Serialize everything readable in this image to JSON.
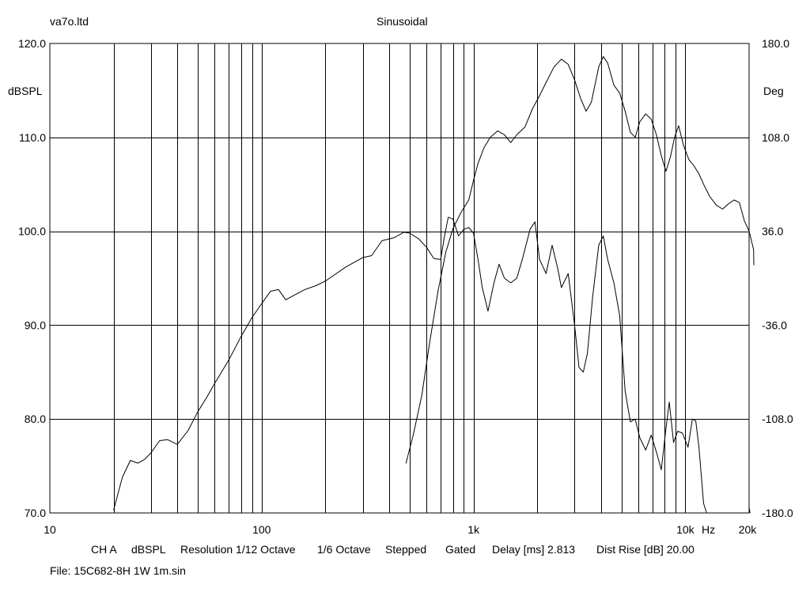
{
  "header": {
    "company": "va7o.ltd",
    "mode": "Sinusoidal"
  },
  "footer": {
    "channel": "CH A",
    "unit": "dBSPL",
    "resolution": "Resolution 1/12 Octave",
    "smoothing": "1/6 Octave",
    "stepped": "Stepped",
    "gated": "Gated",
    "delay": "Delay [ms] 2.813",
    "dist_rise": "Dist Rise [dB] 20.00",
    "file": "File: 15C682-8H 1W 1m.sin"
  },
  "chart_data": {
    "type": "line",
    "x_scale": "log",
    "xlim": [
      10,
      20000
    ],
    "ylim": [
      70,
      120
    ],
    "y2lim": [
      -180,
      180
    ],
    "grid": true,
    "ylabel": "dBSPL",
    "y2label": "Deg",
    "xunit": "Hz",
    "x_ticks": [
      {
        "value": 10,
        "label": "10"
      },
      {
        "value": 100,
        "label": "100"
      },
      {
        "value": 1000,
        "label": "1k"
      },
      {
        "value": 10000,
        "label": "10k"
      },
      {
        "value": 20000,
        "label": "20k"
      }
    ],
    "y_ticks": [
      {
        "value": 120,
        "label": "120.0"
      },
      {
        "value": 110,
        "label": "110.0"
      },
      {
        "value": 100,
        "label": "100.0"
      },
      {
        "value": 90,
        "label": "90.0"
      },
      {
        "value": 80,
        "label": "80.0"
      },
      {
        "value": 70,
        "label": "70.0"
      }
    ],
    "y2_ticks": [
      {
        "value": 180,
        "label": "180.0"
      },
      {
        "value": 108,
        "label": "108.0"
      },
      {
        "value": 36,
        "label": "36.0"
      },
      {
        "value": -36,
        "label": "-36.0"
      },
      {
        "value": -108,
        "label": "-108.0"
      },
      {
        "value": -180,
        "label": "-180.0"
      }
    ],
    "series": [
      {
        "axis": "left",
        "points": [
          [
            20,
            70.3
          ],
          [
            22,
            73.8
          ],
          [
            24,
            75.6
          ],
          [
            26,
            75.3
          ],
          [
            28,
            75.7
          ],
          [
            30,
            76.4
          ],
          [
            33,
            77.7
          ],
          [
            36,
            77.8
          ],
          [
            40,
            77.3
          ],
          [
            45,
            78.8
          ],
          [
            50,
            80.8
          ],
          [
            55,
            82.3
          ],
          [
            60,
            83.8
          ],
          [
            70,
            86.3
          ],
          [
            80,
            88.8
          ],
          [
            90,
            90.8
          ],
          [
            100,
            92.3
          ],
          [
            110,
            93.6
          ],
          [
            120,
            93.8
          ],
          [
            130,
            92.7
          ],
          [
            140,
            93.1
          ],
          [
            160,
            93.8
          ],
          [
            180,
            94.2
          ],
          [
            200,
            94.7
          ],
          [
            250,
            96.2
          ],
          [
            300,
            97.2
          ],
          [
            330,
            97.4
          ],
          [
            370,
            99.0
          ],
          [
            420,
            99.3
          ],
          [
            470,
            99.9
          ],
          [
            500,
            99.8
          ],
          [
            550,
            99.2
          ],
          [
            600,
            98.3
          ],
          [
            650,
            97.1
          ],
          [
            700,
            97.0
          ],
          [
            730,
            99.5
          ],
          [
            760,
            101.5
          ],
          [
            800,
            101.3
          ],
          [
            850,
            99.5
          ],
          [
            900,
            100.2
          ],
          [
            950,
            100.4
          ],
          [
            1000,
            99.8
          ],
          [
            1050,
            97.0
          ],
          [
            1100,
            94.0
          ],
          [
            1170,
            91.5
          ],
          [
            1250,
            94.5
          ],
          [
            1320,
            96.5
          ],
          [
            1400,
            95.0
          ],
          [
            1500,
            94.5
          ],
          [
            1600,
            95.0
          ],
          [
            1700,
            97.0
          ],
          [
            1850,
            100.2
          ],
          [
            1950,
            101.0
          ],
          [
            2050,
            97.0
          ],
          [
            2200,
            95.5
          ],
          [
            2350,
            98.5
          ],
          [
            2500,
            96.0
          ],
          [
            2600,
            94.0
          ],
          [
            2800,
            95.5
          ],
          [
            3000,
            90.0
          ],
          [
            3150,
            85.5
          ],
          [
            3300,
            85.0
          ],
          [
            3450,
            87.0
          ],
          [
            3650,
            93.0
          ],
          [
            3900,
            98.5
          ],
          [
            4100,
            99.5
          ],
          [
            4300,
            97.0
          ],
          [
            4600,
            94.5
          ],
          [
            4900,
            91.0
          ],
          [
            5200,
            83.0
          ],
          [
            5500,
            79.7
          ],
          [
            5800,
            80.0
          ],
          [
            6100,
            78.0
          ],
          [
            6500,
            76.7
          ],
          [
            6900,
            78.3
          ],
          [
            7300,
            76.5
          ],
          [
            7700,
            74.6
          ],
          [
            8100,
            79.0
          ],
          [
            8400,
            81.8
          ],
          [
            8800,
            77.5
          ],
          [
            9200,
            78.7
          ],
          [
            9700,
            78.5
          ],
          [
            10300,
            77.0
          ],
          [
            10800,
            80.0
          ],
          [
            11200,
            79.8
          ],
          [
            11600,
            77.0
          ],
          [
            12200,
            71.0
          ],
          [
            12600,
            70.0
          ]
        ]
      },
      {
        "axis": "left",
        "points": [
          [
            20000,
            70.6
          ],
          [
            20200,
            70.0
          ]
        ]
      },
      {
        "axis": "right",
        "points": [
          [
            480,
            -142
          ],
          [
            520,
            -120
          ],
          [
            570,
            -90
          ],
          [
            620,
            -50
          ],
          [
            680,
            -10
          ],
          [
            740,
            20
          ],
          [
            800,
            38
          ],
          [
            870,
            50
          ],
          [
            950,
            60
          ],
          [
            1000,
            75
          ],
          [
            1050,
            88
          ],
          [
            1120,
            100
          ],
          [
            1200,
            108
          ],
          [
            1300,
            113
          ],
          [
            1400,
            110
          ],
          [
            1500,
            104
          ],
          [
            1600,
            110
          ],
          [
            1750,
            116
          ],
          [
            1900,
            130
          ],
          [
            2050,
            140
          ],
          [
            2200,
            150
          ],
          [
            2400,
            162
          ],
          [
            2600,
            168
          ],
          [
            2800,
            164
          ],
          [
            3000,
            152
          ],
          [
            3200,
            138
          ],
          [
            3400,
            128
          ],
          [
            3600,
            135
          ],
          [
            3900,
            162
          ],
          [
            4100,
            170
          ],
          [
            4300,
            165
          ],
          [
            4600,
            148
          ],
          [
            4900,
            142
          ],
          [
            5200,
            128
          ],
          [
            5500,
            112
          ],
          [
            5800,
            108
          ],
          [
            6100,
            120
          ],
          [
            6500,
            126
          ],
          [
            6900,
            122
          ],
          [
            7300,
            110
          ],
          [
            7700,
            94
          ],
          [
            8100,
            82
          ],
          [
            8500,
            93
          ],
          [
            8900,
            108
          ],
          [
            9300,
            117
          ],
          [
            9800,
            102
          ],
          [
            10400,
            91
          ],
          [
            11000,
            86
          ],
          [
            11600,
            80
          ],
          [
            12200,
            72
          ],
          [
            13000,
            63
          ],
          [
            14000,
            56
          ],
          [
            15000,
            53
          ],
          [
            16000,
            57
          ],
          [
            17000,
            60
          ],
          [
            18000,
            58
          ],
          [
            19000,
            44
          ],
          [
            20000,
            36
          ],
          [
            21000,
            22
          ],
          [
            22000,
            10
          ]
        ]
      }
    ]
  }
}
